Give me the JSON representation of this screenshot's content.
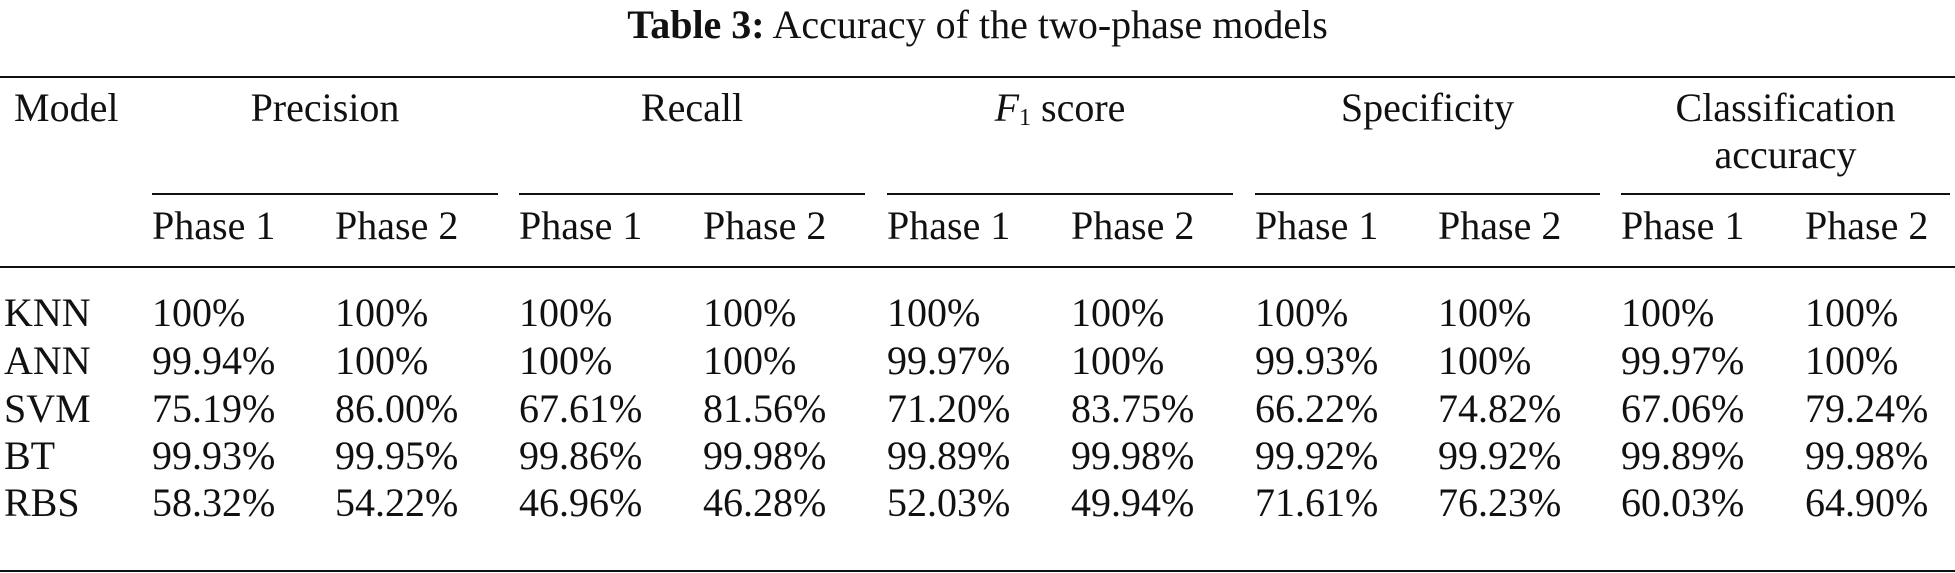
{
  "caption": {
    "label": "Table 3:",
    "text": "Accuracy of the two-phase models"
  },
  "table": {
    "model_header": "Model",
    "metrics": [
      {
        "name": "Precision",
        "line2": ""
      },
      {
        "name": "Recall",
        "line2": ""
      },
      {
        "name": "score",
        "line2": "",
        "italic_prefix": "F",
        "subscript": "1"
      },
      {
        "name": "Specificity",
        "line2": ""
      },
      {
        "name": "Classification",
        "line2": "accuracy"
      }
    ],
    "phases": [
      "Phase 1",
      "Phase 2"
    ],
    "rows": [
      {
        "model": "KNN",
        "values": [
          "100%",
          "100%",
          "100%",
          "100%",
          "100%",
          "100%",
          "100%",
          "100%",
          "100%",
          "100%"
        ]
      },
      {
        "model": "ANN",
        "values": [
          "99.94%",
          "100%",
          "100%",
          "100%",
          "99.97%",
          "100%",
          "99.93%",
          "100%",
          "99.97%",
          "100%"
        ]
      },
      {
        "model": "SVM",
        "values": [
          "75.19%",
          "86.00%",
          "67.61%",
          "81.56%",
          "71.20%",
          "83.75%",
          "66.22%",
          "74.82%",
          "67.06%",
          "79.24%"
        ]
      },
      {
        "model": "BT",
        "values": [
          "99.93%",
          "99.95%",
          "99.86%",
          "99.98%",
          "99.89%",
          "99.98%",
          "99.92%",
          "99.92%",
          "99.89%",
          "99.98%"
        ]
      },
      {
        "model": "RBS",
        "values": [
          "58.32%",
          "54.22%",
          "46.96%",
          "46.28%",
          "52.03%",
          "49.94%",
          "71.61%",
          "76.23%",
          "60.03%",
          "64.90%"
        ]
      }
    ]
  }
}
